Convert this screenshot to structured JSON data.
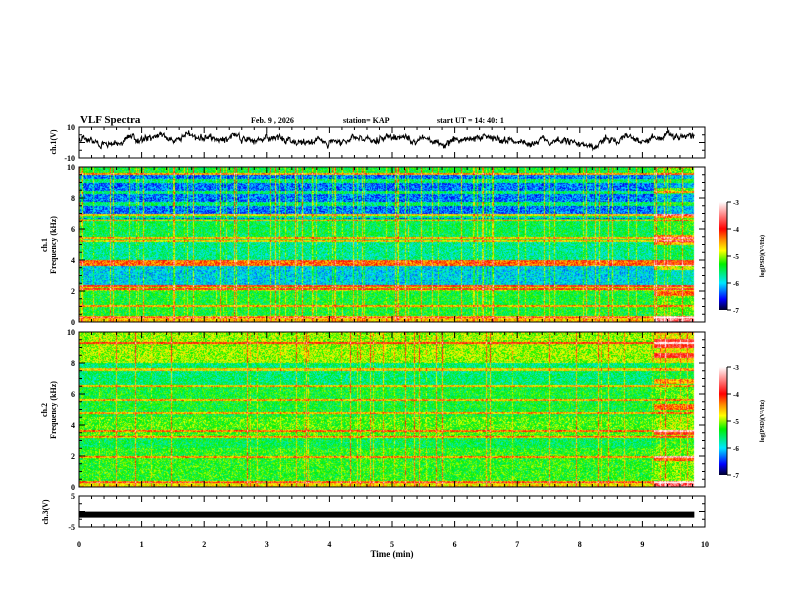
{
  "chart_data": {
    "type": "heatmap",
    "title": "VLF Spectra",
    "date": "Feb. 9 , 2026",
    "station": "station= KAP",
    "start_ut": "start  UT =   14: 40: 1",
    "xlabel": "Time (min)",
    "xlim": [
      0,
      10
    ],
    "data_end_min": 9.83,
    "xticks": [
      "0",
      "1",
      "2",
      "3",
      "4",
      "5",
      "6",
      "7",
      "8",
      "9",
      "10"
    ],
    "panels": [
      {
        "id": "ch1v",
        "type": "line",
        "ylabel": "ch.1(V)",
        "ylim": [
          -10,
          10
        ],
        "yticks": [
          "10",
          "-10"
        ]
      },
      {
        "id": "ch1spec",
        "type": "heatmap",
        "ylabel": "ch.1 Frequency (kHz)",
        "ylim": [
          0,
          10
        ],
        "yticks": [
          "0",
          "2",
          "4",
          "6",
          "8",
          "10"
        ],
        "colorbar": {
          "label": "log(PSD)(V^2/Hz)",
          "range": [
            -7,
            -3
          ],
          "ticks": [
            "-3",
            "-4",
            "-5",
            "-6",
            "-7"
          ]
        }
      },
      {
        "id": "ch2spec",
        "type": "heatmap",
        "ylabel": "ch.2 Frequency (kHz)",
        "ylim": [
          0,
          10
        ],
        "yticks": [
          "0",
          "2",
          "4",
          "6",
          "8",
          "10"
        ],
        "colorbar": {
          "label": "log(PSD)(V^2/Hz)",
          "range": [
            -7,
            -3
          ],
          "ticks": [
            "-3",
            "-4",
            "-5",
            "-6",
            "-7"
          ]
        }
      },
      {
        "id": "ch3v",
        "type": "line",
        "ylabel": "ch.3(V)",
        "ylim": [
          -5,
          5
        ],
        "yticks": [
          "5",
          "-5"
        ],
        "level": -1
      }
    ],
    "colormap": [
      "#000033",
      "#0000ff",
      "#00ffff",
      "#00ff00",
      "#ffff00",
      "#ff8000",
      "#ff0000",
      "#ffffff"
    ]
  }
}
